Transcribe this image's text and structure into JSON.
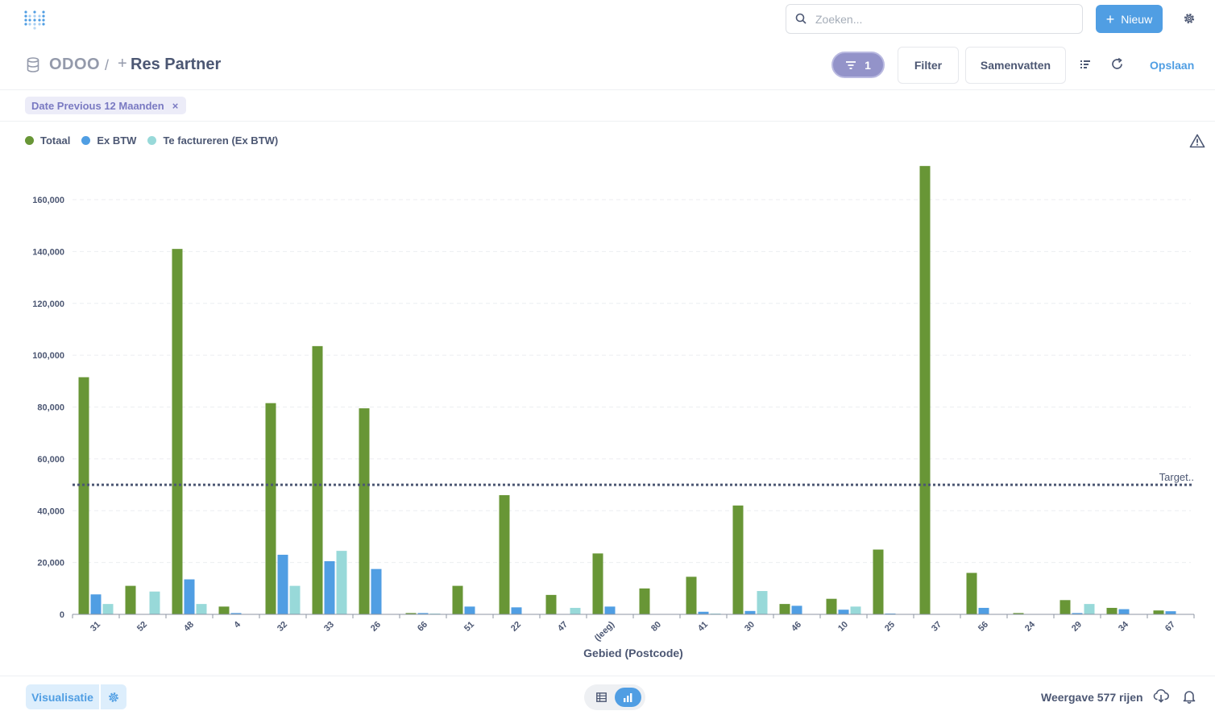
{
  "topbar": {
    "logo_icon": "metabase-logo-icon",
    "search": {
      "placeholder": "Zoeken...",
      "value": ""
    },
    "new_label": "Nieuw"
  },
  "header": {
    "database": "ODOO",
    "separator": "/",
    "plus": "+",
    "title": "Res Partner",
    "filter_count": "1",
    "filter_label": "Filter",
    "summarize_label": "Samenvatten",
    "save_label": "Opslaan"
  },
  "filters": [
    {
      "label": "Date Previous 12 Maanden",
      "remove": "×"
    }
  ],
  "legend": [
    {
      "name": "Totaal",
      "color": "#689636"
    },
    {
      "name": "Ex BTW",
      "color": "#509ee3"
    },
    {
      "name": "Te factureren (Ex BTW)",
      "color": "#98d9d9"
    }
  ],
  "chart_data": {
    "type": "bar",
    "xlabel": "Gebied (Postcode)",
    "ylabel": "",
    "ylim": [
      0,
      172000
    ],
    "yticks": [
      0,
      20000,
      40000,
      60000,
      80000,
      100000,
      120000,
      140000,
      160000
    ],
    "ytick_labels": [
      "0",
      "20,000",
      "40,000",
      "60,000",
      "80,000",
      "100,000",
      "120,000",
      "140,000",
      "160,000"
    ],
    "grid": true,
    "legend_position": "top-left",
    "categories": [
      "31",
      "52",
      "48",
      "4",
      "32",
      "33",
      "26",
      "66",
      "51",
      "22",
      "47",
      "(leeg)",
      "80",
      "41",
      "30",
      "46",
      "10",
      "25",
      "37",
      "56",
      "24",
      "29",
      "34",
      "67"
    ],
    "series": [
      {
        "name": "Totaal",
        "color": "#689636",
        "values": [
          91500,
          11000,
          141000,
          3000,
          81500,
          103500,
          79500,
          500,
          11000,
          46000,
          7500,
          23500,
          10000,
          14500,
          42000,
          4000,
          6000,
          25000,
          173000,
          16000,
          500,
          5500,
          2500,
          1500
        ]
      },
      {
        "name": "Ex BTW",
        "color": "#509ee3",
        "values": [
          7700,
          0,
          13500,
          500,
          23000,
          20500,
          17500,
          500,
          3000,
          2700,
          0,
          3000,
          0,
          1000,
          1300,
          3300,
          1800,
          300,
          0,
          2500,
          0,
          500,
          2000,
          1200
        ]
      },
      {
        "name": "Te factureren (Ex BTW)",
        "color": "#98d9d9",
        "values": [
          4000,
          8800,
          4000,
          0,
          11000,
          24500,
          0,
          300,
          0,
          0,
          2500,
          0,
          0,
          300,
          9000,
          0,
          3000,
          0,
          0,
          0,
          0,
          4000,
          0,
          0
        ]
      }
    ],
    "goal": {
      "value": 50000,
      "label": "Target.."
    }
  },
  "footer": {
    "visualisation_label": "Visualisatie",
    "rows_label": "Weergave 577 rijen"
  }
}
